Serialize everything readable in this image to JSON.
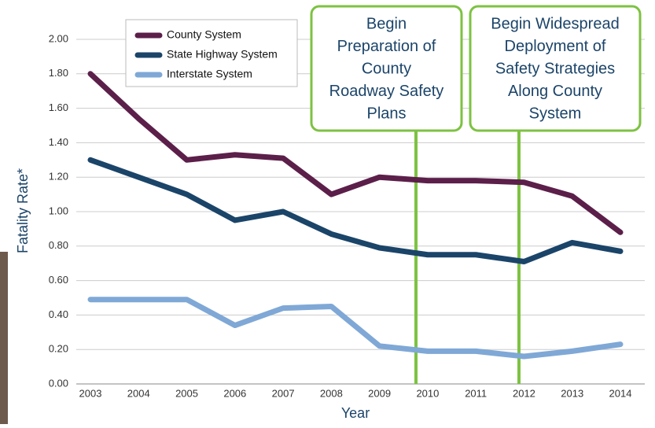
{
  "chart_data": {
    "type": "line",
    "x_label": "Year",
    "y_label": "Fatality Rate*",
    "categories": [
      "2003",
      "2004",
      "2005",
      "2006",
      "2007",
      "2008",
      "2009",
      "2010",
      "2011",
      "2012",
      "2013",
      "2014"
    ],
    "series": [
      {
        "name": "County System",
        "color": "#5b1f4a",
        "values": [
          1.8,
          1.54,
          1.3,
          1.33,
          1.31,
          1.1,
          1.2,
          1.18,
          1.18,
          1.17,
          1.09,
          0.88
        ]
      },
      {
        "name": "State Highway System",
        "color": "#1b4469",
        "values": [
          1.3,
          1.2,
          1.1,
          0.95,
          1.0,
          0.87,
          0.79,
          0.75,
          0.75,
          0.71,
          0.82,
          0.77
        ]
      },
      {
        "name": "Interstate System",
        "color": "#7fa8d6",
        "values": [
          0.49,
          0.49,
          0.49,
          0.34,
          0.44,
          0.45,
          0.22,
          0.19,
          0.19,
          0.16,
          0.19,
          0.23
        ]
      }
    ],
    "ylim": [
      0,
      2
    ],
    "yticks": [
      {
        "value": 0,
        "label": "0.00"
      },
      {
        "value": 0.2,
        "label": "0.20"
      },
      {
        "value": 0.4,
        "label": "0.40"
      },
      {
        "value": 0.6,
        "label": "0.60"
      },
      {
        "value": 0.8,
        "label": "0.80"
      },
      {
        "value": 1,
        "label": "1.00"
      },
      {
        "value": 1.2,
        "label": "1.20"
      },
      {
        "value": 1.4,
        "label": "1.40"
      },
      {
        "value": 1.6,
        "label": "1.60"
      },
      {
        "value": 1.8,
        "label": "1.80"
      },
      {
        "value": 2,
        "label": "2.00"
      }
    ],
    "grid": true,
    "legend": "upper left",
    "annotations": [
      {
        "lines": [
          "Begin",
          "Preparation of",
          "County",
          "Roadway Safety",
          "Plans"
        ]
      },
      {
        "lines": [
          "Begin Widespread",
          "Deployment of",
          "Safety Strategies",
          "Along County",
          "System"
        ]
      }
    ]
  }
}
